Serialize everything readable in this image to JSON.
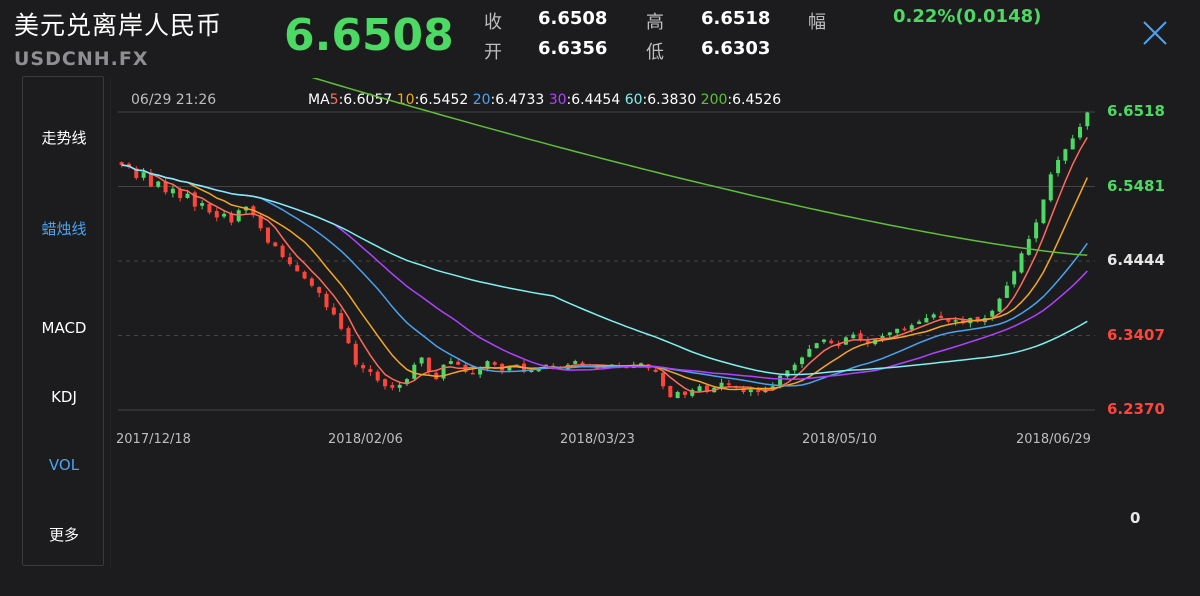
{
  "header": {
    "name": "美元兑离岸人民币",
    "symbol": "USDCNH.FX",
    "price": "6.6508",
    "quote": {
      "close_label": "收",
      "close_value": "6.6508",
      "open_label": "开",
      "open_value": "6.6356",
      "high_label": "高",
      "high_value": "6.6518",
      "low_label": "低",
      "low_value": "6.6303",
      "change_label": "幅",
      "change_value": "0.22%(0.0148)"
    }
  },
  "tabs": [
    {
      "label": "走势线",
      "active": false
    },
    {
      "label": "蜡烛线",
      "active": true
    },
    {
      "label": "MACD",
      "active": false
    },
    {
      "label": "KDJ",
      "active": false
    },
    {
      "label": "VOL",
      "active": true
    },
    {
      "label": "更多",
      "active": false
    }
  ],
  "legend": {
    "datetime": "06/29 21:26",
    "prefix": "MA",
    "items": [
      {
        "period": "5",
        "sep": ":",
        "value": "6.6057",
        "color": "#ff6b5a"
      },
      {
        "period": "10",
        "sep": ":",
        "value": "6.5452",
        "color": "#f5a623"
      },
      {
        "period": "20",
        "sep": ":",
        "value": "6.4733",
        "color": "#4aa3f0"
      },
      {
        "period": "30",
        "sep": ":",
        "value": "6.4454",
        "color": "#b042ff"
      },
      {
        "period": "60",
        "sep": ":",
        "value": "6.3830",
        "color": "#7ff0f0"
      },
      {
        "period": "200",
        "sep": ":",
        "value": "6.4526",
        "color": "#5fbf3a"
      }
    ]
  },
  "y_axis": [
    {
      "label": "6.6518",
      "color": "#4cd964"
    },
    {
      "label": "6.5481",
      "color": "#4cd964"
    },
    {
      "label": "6.4444",
      "color": "#e6e6e6"
    },
    {
      "label": "6.3407",
      "color": "#ff453a"
    },
    {
      "label": "6.2370",
      "color": "#ff453a"
    }
  ],
  "x_axis": [
    "2017/12/18",
    "2018/02/06",
    "2018/03/23",
    "2018/05/10",
    "2018/06/29"
  ],
  "volume": {
    "zero_label": "0"
  },
  "colors": {
    "up": "#4cd964",
    "down": "#ff453a",
    "accent": "#4aa3f0",
    "background": "#1c1c1e"
  },
  "chart_data": {
    "type": "candlestick",
    "ylim": [
      6.237,
      6.6518
    ],
    "closes": [
      6.578,
      6.575,
      6.56,
      6.568,
      6.548,
      6.555,
      6.54,
      6.545,
      6.532,
      6.538,
      6.52,
      6.525,
      6.512,
      6.505,
      6.51,
      6.498,
      6.515,
      6.52,
      6.508,
      6.49,
      6.47,
      6.465,
      6.45,
      6.44,
      6.43,
      6.42,
      6.41,
      6.4,
      6.38,
      6.37,
      6.35,
      6.33,
      6.3,
      6.295,
      6.29,
      6.278,
      6.27,
      6.268,
      6.272,
      6.28,
      6.3,
      6.31,
      6.29,
      6.28,
      6.3,
      6.305,
      6.3,
      6.29,
      6.288,
      6.295,
      6.305,
      6.3,
      6.292,
      6.298,
      6.3,
      6.29,
      6.292,
      6.295,
      6.3,
      6.298,
      6.295,
      6.3,
      6.305,
      6.3,
      6.298,
      6.295,
      6.298,
      6.3,
      6.298,
      6.296,
      6.3,
      6.302,
      6.295,
      6.29,
      6.27,
      6.255,
      6.262,
      6.258,
      6.265,
      6.27,
      6.262,
      6.268,
      6.275,
      6.272,
      6.268,
      6.262,
      6.265,
      6.262,
      6.265,
      6.27,
      6.285,
      6.292,
      6.3,
      6.31,
      6.322,
      6.33,
      6.335,
      6.33,
      6.328,
      6.338,
      6.342,
      6.335,
      6.33,
      6.335,
      6.34,
      6.345,
      6.35,
      6.348,
      6.355,
      6.36,
      6.365,
      6.37,
      6.365,
      6.36,
      6.362,
      6.358,
      6.365,
      6.36,
      6.365,
      6.375,
      6.392,
      6.41,
      6.43,
      6.455,
      6.475,
      6.498,
      6.53,
      6.565,
      6.585,
      6.6,
      6.615,
      6.631,
      6.651
    ]
  }
}
